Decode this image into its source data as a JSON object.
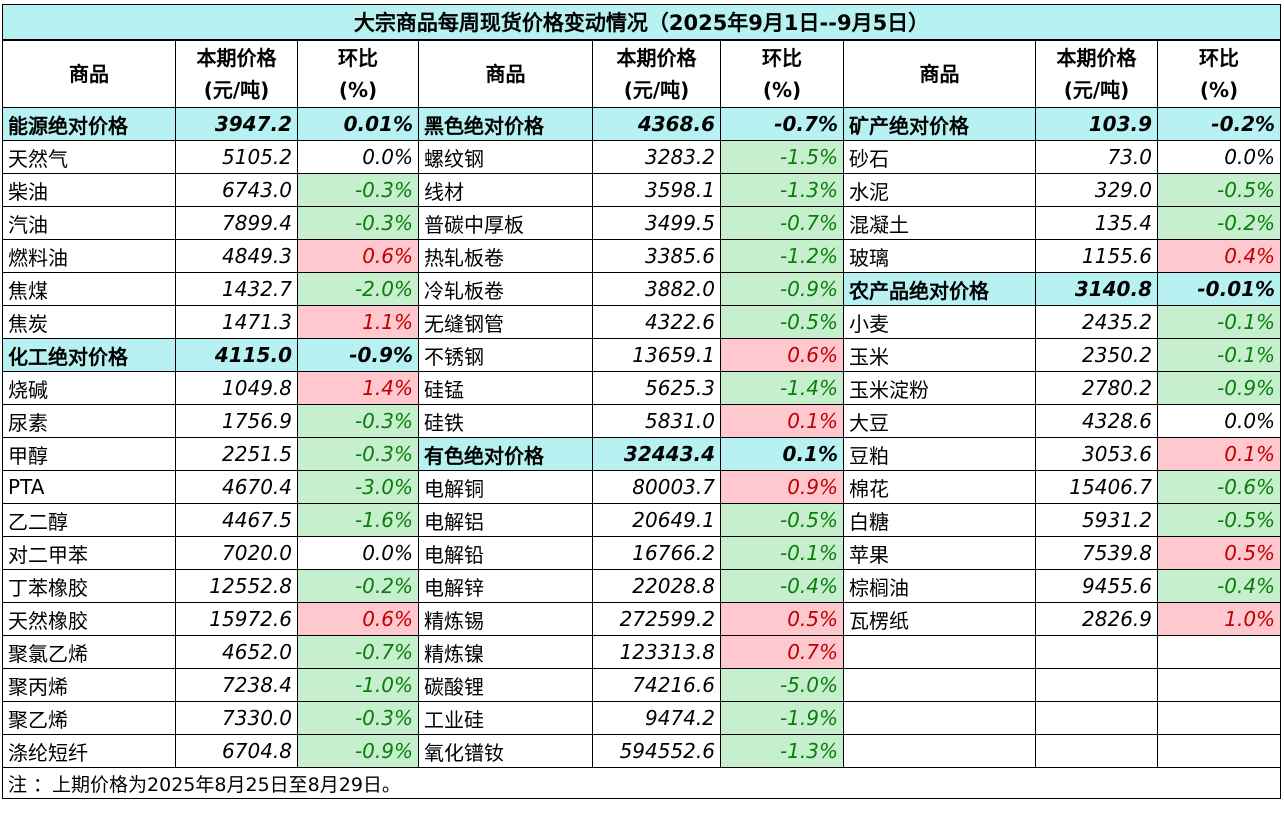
{
  "title": "大宗商品每周现货价格变动情况（2025年9月1日--9月5日）",
  "columns": [
    [
      "商品"
    ],
    [
      "本期价格",
      "(元/吨)"
    ],
    [
      "环比",
      "(%)"
    ]
  ],
  "sections": [
    {
      "groups": [
        {
          "name": "能源绝对价格",
          "price": "3947.2",
          "change": "0.01%",
          "items": [
            {
              "name": "天然气",
              "price": "5105.2",
              "change": "0.0%"
            },
            {
              "name": "柴油",
              "price": "6743.0",
              "change": "-0.3%"
            },
            {
              "name": "汽油",
              "price": "7899.4",
              "change": "-0.3%"
            },
            {
              "name": "燃料油",
              "price": "4849.3",
              "change": "0.6%"
            },
            {
              "name": "焦煤",
              "price": "1432.7",
              "change": "-2.0%"
            },
            {
              "name": "焦炭",
              "price": "1471.3",
              "change": "1.1%"
            }
          ]
        },
        {
          "name": "化工绝对价格",
          "price": "4115.0",
          "change": "-0.9%",
          "items": [
            {
              "name": "烧碱",
              "price": "1049.8",
              "change": "1.4%"
            },
            {
              "name": "尿素",
              "price": "1756.9",
              "change": "-0.3%"
            },
            {
              "name": "甲醇",
              "price": "2251.5",
              "change": "-0.3%"
            },
            {
              "name": "PTA",
              "price": "4670.4",
              "change": "-3.0%"
            },
            {
              "name": "乙二醇",
              "price": "4467.5",
              "change": "-1.6%"
            },
            {
              "name": "对二甲苯",
              "price": "7020.0",
              "change": "0.0%"
            },
            {
              "name": "丁苯橡胶",
              "price": "12552.8",
              "change": "-0.2%"
            },
            {
              "name": "天然橡胶",
              "price": "15972.6",
              "change": "0.6%"
            },
            {
              "name": "聚氯乙烯",
              "price": "4652.0",
              "change": "-0.7%"
            },
            {
              "name": "聚丙烯",
              "price": "7238.4",
              "change": "-1.0%"
            },
            {
              "name": "聚乙烯",
              "price": "7330.0",
              "change": "-0.3%"
            },
            {
              "name": "涤纶短纤",
              "price": "6704.8",
              "change": "-0.9%"
            }
          ]
        }
      ]
    },
    {
      "groups": [
        {
          "name": "黑色绝对价格",
          "price": "4368.6",
          "change": "-0.7%",
          "items": [
            {
              "name": "螺纹钢",
              "price": "3283.2",
              "change": "-1.5%"
            },
            {
              "name": "线材",
              "price": "3598.1",
              "change": "-1.3%"
            },
            {
              "name": "普碳中厚板",
              "price": "3499.5",
              "change": "-0.7%"
            },
            {
              "name": "热轧板卷",
              "price": "3385.6",
              "change": "-1.2%"
            },
            {
              "name": "冷轧板卷",
              "price": "3882.0",
              "change": "-0.9%"
            },
            {
              "name": "无缝钢管",
              "price": "4322.6",
              "change": "-0.5%"
            },
            {
              "name": "不锈钢",
              "price": "13659.1",
              "change": "0.6%"
            },
            {
              "name": "硅锰",
              "price": "5625.3",
              "change": "-1.4%"
            },
            {
              "name": "硅铁",
              "price": "5831.0",
              "change": "0.1%"
            }
          ]
        },
        {
          "name": "有色绝对价格",
          "price": "32443.4",
          "change": "0.1%",
          "items": [
            {
              "name": "电解铜",
              "price": "80003.7",
              "change": "0.9%"
            },
            {
              "name": "电解铝",
              "price": "20649.1",
              "change": "-0.5%"
            },
            {
              "name": "电解铅",
              "price": "16766.2",
              "change": "-0.1%"
            },
            {
              "name": "电解锌",
              "price": "22028.8",
              "change": "-0.4%"
            },
            {
              "name": "精炼锡",
              "price": "272599.2",
              "change": "0.5%"
            },
            {
              "name": "精炼镍",
              "price": "123313.8",
              "change": "0.7%"
            },
            {
              "name": "碳酸锂",
              "price": "74216.6",
              "change": "-5.0%"
            },
            {
              "name": "工业硅",
              "price": "9474.2",
              "change": "-1.9%"
            },
            {
              "name": "氧化镨钕",
              "price": "594552.6",
              "change": "-1.3%"
            }
          ]
        }
      ]
    },
    {
      "groups": [
        {
          "name": "矿产绝对价格",
          "price": "103.9",
          "change": "-0.2%",
          "items": [
            {
              "name": "砂石",
              "price": "73.0",
              "change": "0.0%"
            },
            {
              "name": "水泥",
              "price": "329.0",
              "change": "-0.5%"
            },
            {
              "name": "混凝土",
              "price": "135.4",
              "change": "-0.2%"
            },
            {
              "name": "玻璃",
              "price": "1155.6",
              "change": "0.4%"
            }
          ]
        },
        {
          "name": "农产品绝对价格",
          "price": "3140.8",
          "change": "-0.01%",
          "items": [
            {
              "name": "小麦",
              "price": "2435.2",
              "change": "-0.1%"
            },
            {
              "name": "玉米",
              "price": "2350.2",
              "change": "-0.1%"
            },
            {
              "name": "玉米淀粉",
              "price": "2780.2",
              "change": "-0.9%"
            },
            {
              "name": "大豆",
              "price": "4328.6",
              "change": "0.0%"
            },
            {
              "name": "豆粕",
              "price": "3053.6",
              "change": "0.1%"
            },
            {
              "name": "棉花",
              "price": "15406.7",
              "change": "-0.6%"
            },
            {
              "name": "白糖",
              "price": "5931.2",
              "change": "-0.5%"
            },
            {
              "name": "苹果",
              "price": "7539.8",
              "change": "0.5%"
            },
            {
              "name": "棕榈油",
              "price": "9455.6",
              "change": "-0.4%"
            },
            {
              "name": "瓦楞纸",
              "price": "2826.9",
              "change": "1.0%"
            }
          ]
        }
      ]
    }
  ],
  "note": "注 ：上期价格为2025年8月25日至8月29日。"
}
